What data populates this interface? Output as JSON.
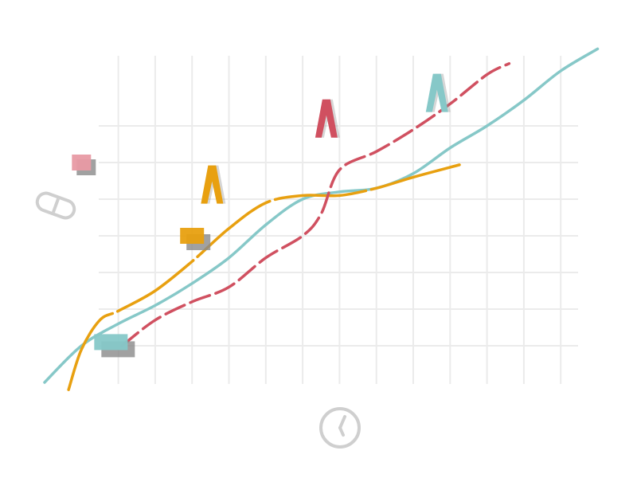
{
  "colors": {
    "grid": "#ebebeb",
    "axis_icon": "#cfcfcf",
    "shadow": "#8a8a8a"
  },
  "axes": {
    "x_icon": "clock-icon",
    "y_icon": "pill-icon"
  },
  "chart_data": {
    "type": "line",
    "title": "",
    "xlabel": "",
    "ylabel": "",
    "xlim": [
      0,
      15
    ],
    "ylim": [
      0,
      9
    ],
    "grid": true,
    "series": [
      {
        "color": "#86c8c8",
        "dash": "solid",
        "x": [
          0,
          1,
          2,
          3,
          4,
          5,
          6,
          7,
          8,
          9,
          10,
          11,
          12,
          13,
          14,
          15
        ],
        "y": [
          0,
          1.0,
          1.6,
          2.1,
          2.7,
          3.4,
          4.3,
          5.0,
          5.2,
          5.3,
          5.7,
          6.4,
          7.0,
          7.7,
          8.5,
          9.1
        ]
      },
      {
        "color": "#e8a010",
        "dash": "long-dash",
        "x": [
          0.65,
          1,
          1.5,
          2,
          3,
          4,
          5,
          6,
          7,
          8,
          9,
          10,
          11.3
        ],
        "y": [
          -0.2,
          0.9,
          1.7,
          1.95,
          2.5,
          3.3,
          4.2,
          4.9,
          5.1,
          5.1,
          5.3,
          5.6,
          5.95
        ]
      },
      {
        "color": "#d05060",
        "dash": "dash",
        "x": [
          2.1,
          3,
          4,
          5,
          6,
          7,
          7.5,
          8,
          9,
          10,
          11,
          12,
          12.6
        ],
        "y": [
          1.0,
          1.7,
          2.2,
          2.6,
          3.4,
          4.0,
          4.6,
          5.8,
          6.3,
          6.9,
          7.6,
          8.4,
          8.7
        ]
      }
    ],
    "markers": [
      {
        "color": "#86c8c8",
        "x": 1.8,
        "y": 1.1,
        "shape": "rect-wide"
      },
      {
        "color": "#e8a010",
        "x": 4.0,
        "y": 4.0,
        "shape": "rect"
      },
      {
        "color": "#e89aa4",
        "x": 1.0,
        "y": 6.0,
        "shape": "rect-small"
      },
      {
        "color": "#e8a010",
        "x": 4.5,
        "y": 5.4,
        "shape": "lambda"
      },
      {
        "color": "#d05060",
        "x": 7.6,
        "y": 7.2,
        "shape": "lambda"
      },
      {
        "color": "#86c8c8",
        "x": 10.6,
        "y": 7.9,
        "shape": "lambda"
      }
    ]
  }
}
